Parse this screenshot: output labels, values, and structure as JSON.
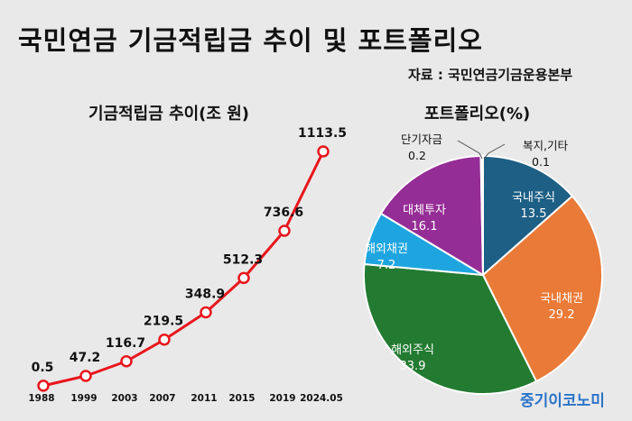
{
  "title": "국민연금 기금적립금 추이 및 포트폴리오",
  "source": "자료 : 국민연금기금운용본부",
  "watermark": "중기이코노미",
  "colors": {
    "line": "#e8161c",
    "background": "#e9e9e9",
    "pie": [
      "#1d5f85",
      "#ea7a37",
      "#237a31",
      "#1ea5df",
      "#952d96",
      "#ffffff",
      "#ffffff"
    ]
  },
  "chart_data": [
    {
      "type": "line",
      "title": "기금적립금 추이(조 원)",
      "categories": [
        "1988",
        "1999",
        "2003",
        "2007",
        "2011",
        "2015",
        "2019",
        "2024.05"
      ],
      "values": [
        0.5,
        47.2,
        116.7,
        219.5,
        348.9,
        512.3,
        736.6,
        1113.5
      ],
      "value_labels": [
        "0.5",
        "47.2",
        "116.7",
        "219.5",
        "348.9",
        "512.3",
        "736.6",
        "1113.5"
      ],
      "ylim": [
        0,
        1113.5
      ],
      "grid": false,
      "marker": "hollow-circle"
    },
    {
      "type": "pie",
      "title": "포트폴리오(%)",
      "slices": [
        {
          "label": "국내주식",
          "value": 13.5,
          "value_label": "13.5"
        },
        {
          "label": "국내채권",
          "value": 29.2,
          "value_label": "29.2"
        },
        {
          "label": "해외주식",
          "value": 33.9,
          "value_label": "33.9"
        },
        {
          "label": "해외채권",
          "value": 7.2,
          "value_label": "7.2"
        },
        {
          "label": "대체투자",
          "value": 16.1,
          "value_label": "16.1"
        },
        {
          "label": "단기자금",
          "value": 0.2,
          "value_label": "0.2"
        },
        {
          "label": "복지,기타",
          "value": 0.1,
          "value_label": "0.1"
        }
      ]
    }
  ]
}
